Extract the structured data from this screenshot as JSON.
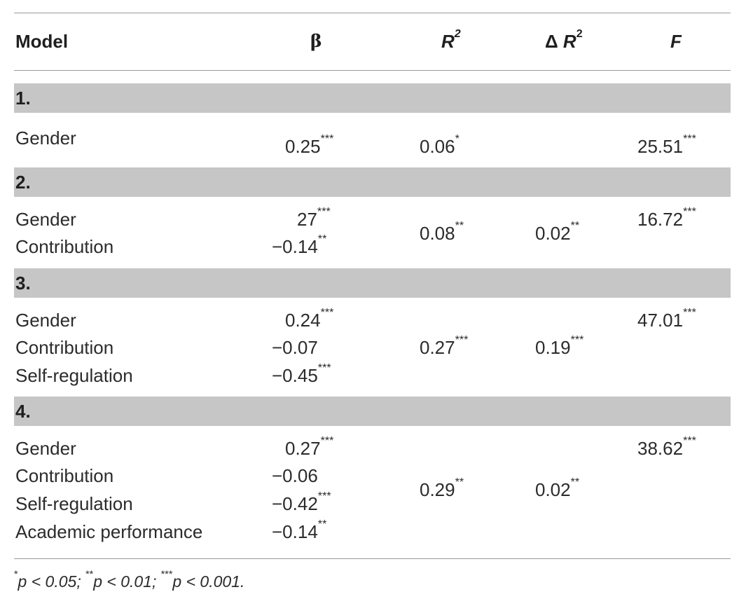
{
  "header": {
    "model": "Model",
    "beta": "β",
    "r2_base": "R",
    "r2_exp": "2",
    "dr2_delta": "Δ ",
    "dr2_base": "R",
    "dr2_exp": "2",
    "f": "F"
  },
  "blocks": [
    {
      "label": "1.",
      "rows": [
        {
          "predictor": "Gender",
          "beta": "0.25",
          "beta_sig": "***"
        }
      ],
      "r2": "0.06",
      "r2_sig": "*",
      "dr2": "",
      "dr2_sig": "",
      "f": "25.51",
      "f_sig": "***"
    },
    {
      "label": "2.",
      "rows": [
        {
          "predictor": "Gender",
          "beta": "27",
          "beta_sig": "***"
        },
        {
          "predictor": "Contribution",
          "beta": "−0.14",
          "beta_sig": "**"
        }
      ],
      "r2": "0.08",
      "r2_sig": "**",
      "dr2": "0.02",
      "dr2_sig": "**",
      "f": "16.72",
      "f_sig": "***"
    },
    {
      "label": "3.",
      "rows": [
        {
          "predictor": "Gender",
          "beta": "0.24",
          "beta_sig": "***"
        },
        {
          "predictor": "Contribution",
          "beta": "−0.07",
          "beta_sig": ""
        },
        {
          "predictor": "Self-regulation",
          "beta": "−0.45",
          "beta_sig": "***"
        }
      ],
      "r2": "0.27",
      "r2_sig": "***",
      "dr2": "0.19",
      "dr2_sig": "***",
      "f": "47.01",
      "f_sig": "***"
    },
    {
      "label": "4.",
      "rows": [
        {
          "predictor": "Gender",
          "beta": "0.27",
          "beta_sig": "***"
        },
        {
          "predictor": "Contribution",
          "beta": "−0.06",
          "beta_sig": ""
        },
        {
          "predictor": "Self-regulation",
          "beta": "−0.42",
          "beta_sig": "***"
        },
        {
          "predictor": "Academic performance",
          "beta": "−0.14",
          "beta_sig": "**"
        }
      ],
      "r2": "0.29",
      "r2_sig": "**",
      "dr2": "0.02",
      "dr2_sig": "**",
      "f": "38.62",
      "f_sig": "***"
    }
  ],
  "footnote": {
    "s1": "*",
    "t1": "p < 0.05; ",
    "s2": "**",
    "t2": "p < 0.01; ",
    "s3": "***",
    "t3": "p < 0.001."
  },
  "colors": {
    "band": "#c6c6c6",
    "rule": "#9a9a9a",
    "text": "#2b2b2b"
  }
}
